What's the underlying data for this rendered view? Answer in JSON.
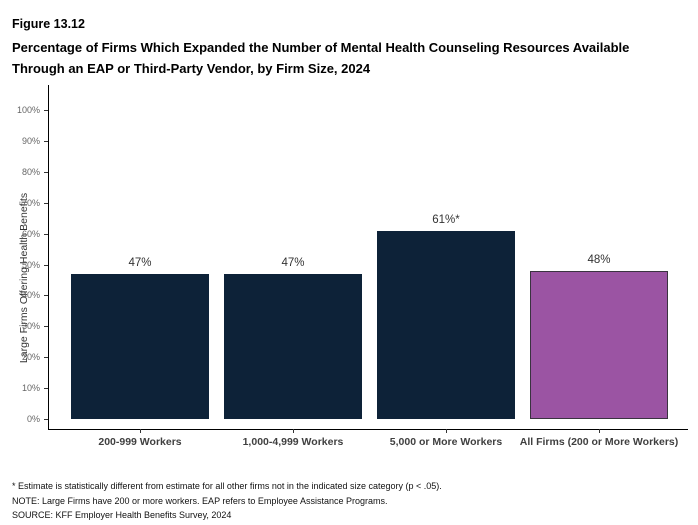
{
  "header": {
    "figure_number": "Figure 13.12",
    "title": "Percentage of Firms Which Expanded the Number of Mental Health Counseling Resources Available Through an EAP or Third-Party Vendor, by Firm Size, 2024"
  },
  "chart_data": {
    "type": "bar",
    "title": "Percentage of Firms Which Expanded the Number of Mental Health Counseling Resources Available Through an EAP or Third-Party Vendor, by Firm Size, 2024",
    "categories": [
      "200-999 Workers",
      "1,000-4,999 Workers",
      "5,000 or More Workers",
      "All Firms (200 or More Workers)"
    ],
    "values": [
      47,
      47,
      61,
      48
    ],
    "value_labels": [
      "47%",
      "47%",
      "61%*",
      "48%"
    ],
    "bar_colors": [
      "#0d2238",
      "#0d2238",
      "#0d2238",
      "#9b54a3"
    ],
    "bar_border_colors": [
      "#0d2238",
      "#0d2238",
      "#0d2238",
      "#3a3340"
    ],
    "xlabel": "",
    "ylabel": "Large Firms Offering Health Benefits",
    "ylim": [
      0,
      100
    ],
    "ytick_labels": [
      "0%",
      "10%",
      "20%",
      "30%",
      "40%",
      "50%",
      "60%",
      "70%",
      "80%",
      "90%",
      "100%"
    ],
    "grid": "off",
    "legend": "none"
  },
  "footnotes": [
    "* Estimate is statistically different from estimate for all other firms not in the indicated size category (p < .05).",
    "NOTE: Large Firms have 200 or more workers.  EAP refers to Employee Assistance Programs.",
    "SOURCE: KFF Employer Health Benefits Survey, 2024"
  ]
}
